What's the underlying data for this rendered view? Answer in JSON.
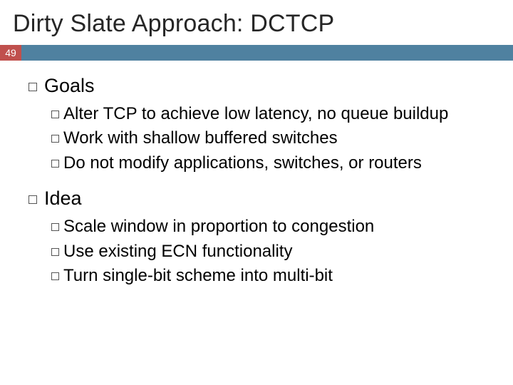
{
  "title": "Dirty Slate Approach: DCTCP",
  "slide_number": "49",
  "colors": {
    "badge_bg": "#c0504d",
    "bar_bg": "#4f81a0",
    "title_color": "#262626",
    "text_color": "#000000",
    "bullet_border": "#555555",
    "background": "#ffffff"
  },
  "typography": {
    "title_fontsize": 34,
    "top_fontsize": 27,
    "sub_fontsize": 24,
    "font_family": "Arial"
  },
  "sections": [
    {
      "heading": "Goals",
      "items": [
        "Alter TCP to achieve low latency, no queue buildup",
        "Work with shallow buffered switches",
        "Do not modify applications, switches, or routers"
      ]
    },
    {
      "heading": "Idea",
      "items": [
        "Scale window in proportion to congestion",
        "Use existing ECN functionality",
        "Turn single-bit scheme into multi-bit"
      ]
    }
  ]
}
